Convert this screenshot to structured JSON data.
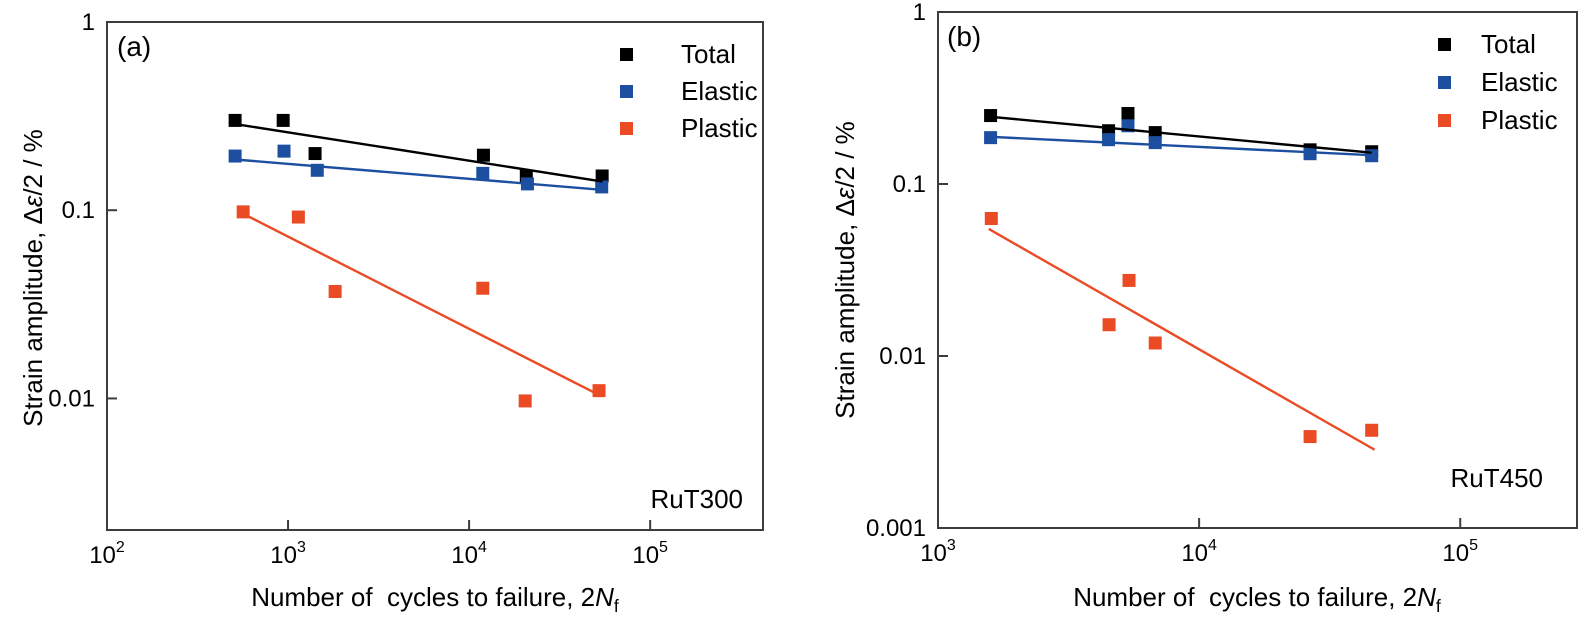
{
  "figure": {
    "bg": "#ffffff",
    "axis_color": "#3c3c3c",
    "text_color": "#000000",
    "series_colors": {
      "total": "#000000",
      "elastic": "#1d4fa1",
      "plastic": "#eb4b24"
    }
  },
  "labels": {
    "ylabel_prefix": "Strain amplitude, Δ",
    "ylabel_epsilon": "ε",
    "ylabel_suffix": "/2 / %",
    "xlabel_prefix": "Number of  cycles to failure, 2",
    "xlabel_var": "N",
    "xlabel_sub": "f"
  },
  "legend": {
    "items": [
      "Total",
      "Elastic",
      "Plastic"
    ]
  },
  "chart_data": [
    {
      "type": "scatter",
      "panel_label": "(a)",
      "material": "RuT300",
      "title": "",
      "xlabel": "Number of cycles to failure, 2Nf",
      "ylabel": "Strain amplitude, Δε/2 / %",
      "x_scale": "log",
      "y_scale": "log",
      "xlim": [
        100,
        420000
      ],
      "ylim": [
        0.002,
        1
      ],
      "x_tick_exponents": [
        2,
        3,
        4,
        5
      ],
      "y_tick_values": [
        1,
        0.1,
        0.01
      ],
      "y_tick_labels": [
        "1",
        "0.1",
        "0.01"
      ],
      "grid": false,
      "legend_position": "upper right",
      "series": [
        {
          "name": "Total",
          "color": "#000000",
          "points": [
            [
              510,
              0.3
            ],
            [
              940,
              0.3
            ],
            [
              1410,
              0.2
            ],
            [
              12000,
              0.196
            ],
            [
              20700,
              0.152
            ],
            [
              54300,
              0.152
            ]
          ],
          "fit_line": {
            "x": [
              510,
              54500
            ],
            "y": [
              0.287,
              0.142
            ]
          }
        },
        {
          "name": "Elastic",
          "color": "#1d4fa1",
          "points": [
            [
              510,
              0.194
            ],
            [
              950,
              0.206
            ],
            [
              1450,
              0.163
            ],
            [
              11900,
              0.157
            ],
            [
              21000,
              0.138
            ],
            [
              54000,
              0.133
            ]
          ],
          "fit_line": {
            "x": [
              510,
              56000
            ],
            "y": [
              0.186,
              0.128
            ]
          }
        },
        {
          "name": "Plastic",
          "color": "#eb4b24",
          "points": [
            [
              565,
              0.098
            ],
            [
              1140,
              0.092
            ],
            [
              1820,
              0.037
            ],
            [
              11900,
              0.0385
            ],
            [
              20400,
              0.0097
            ],
            [
              52200,
              0.011
            ]
          ],
          "fit_line": {
            "x": [
              560,
              52500
            ],
            "y": [
              0.0962,
              0.0104
            ]
          }
        }
      ]
    },
    {
      "type": "scatter",
      "panel_label": "(b)",
      "material": "RuT450",
      "title": "",
      "xlabel": "Number of cycles to failure, 2Nf",
      "ylabel": "Strain amplitude, Δε/2 / %",
      "x_scale": "log",
      "y_scale": "log",
      "xlim": [
        1000,
        280000
      ],
      "ylim": [
        0.001,
        1
      ],
      "x_tick_exponents": [
        3,
        4,
        5
      ],
      "y_tick_values": [
        1,
        0.1,
        0.01,
        0.001
      ],
      "y_tick_labels": [
        "1",
        "0.1",
        "0.01",
        "0.001"
      ],
      "grid": false,
      "legend_position": "upper right",
      "series": [
        {
          "name": "Total",
          "color": "#000000",
          "points": [
            [
              1590,
              0.25
            ],
            [
              4500,
              0.204
            ],
            [
              5340,
              0.257
            ],
            [
              6790,
              0.199
            ],
            [
              26600,
              0.158
            ],
            [
              45800,
              0.154
            ]
          ],
          "fit_line": {
            "x": [
              1588,
              45800
            ],
            "y": [
              0.246,
              0.152
            ]
          }
        },
        {
          "name": "Elastic",
          "color": "#1d4fa1",
          "points": [
            [
              1590,
              0.186
            ],
            [
              4500,
              0.181
            ],
            [
              5340,
              0.218
            ],
            [
              6790,
              0.174
            ],
            [
              26600,
              0.15
            ],
            [
              45800,
              0.146
            ]
          ],
          "fit_line": {
            "x": [
              1590,
              45800
            ],
            "y": [
              0.188,
              0.147
            ]
          }
        },
        {
          "name": "Plastic",
          "color": "#eb4b24",
          "points": [
            [
              1600,
              0.063
            ],
            [
              4520,
              0.0152
            ],
            [
              5390,
              0.0275
            ],
            [
              6790,
              0.0119
            ],
            [
              26600,
              0.0034
            ],
            [
              45800,
              0.0037
            ]
          ],
          "fit_line": {
            "x": [
              1565,
              47000
            ],
            "y": [
              0.0548,
              0.00285
            ]
          }
        }
      ]
    }
  ]
}
